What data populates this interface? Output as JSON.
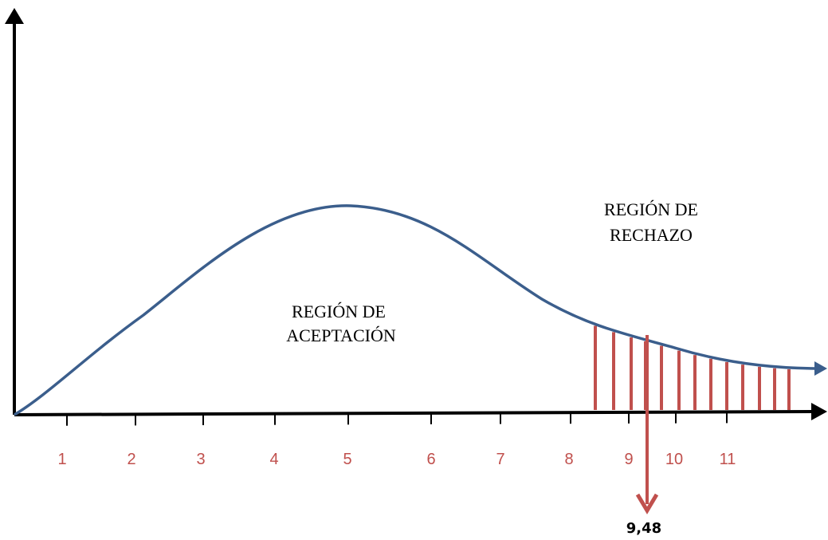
{
  "colors": {
    "axis": "#000000",
    "curve": "#3B5E8C",
    "hatch": "#C0504D",
    "tick_label": "#C0504D",
    "label": "#000000"
  },
  "labels": {
    "acceptance_line1": "REGIÓN DE",
    "acceptance_line2": "ACEPTACIÓN",
    "rejection_line1": "REGIÓN DE",
    "rejection_line2": "RECHAZO",
    "critical_value": "9,48"
  },
  "axis": {
    "tick_labels": [
      "1",
      "2",
      "3",
      "4",
      "5",
      "6",
      "7",
      "8",
      "9",
      "10",
      "11"
    ]
  },
  "icons": {
    "critical_marker": "arrow-down-icon"
  }
}
